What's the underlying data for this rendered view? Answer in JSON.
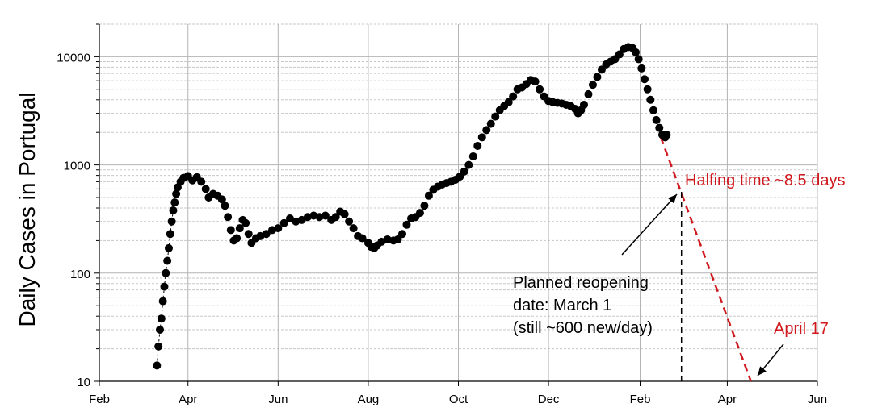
{
  "chart_data": {
    "type": "scatter",
    "title": "",
    "ylabel": "Daily Cases in Portugal",
    "xlabel": "",
    "yscale": "log",
    "ylim": [
      10,
      20000
    ],
    "xlim": [
      "2020-02-01",
      "2021-06-01"
    ],
    "x_ticks": [
      {
        "label": "Feb",
        "date": "2020-02-01"
      },
      {
        "label": "Apr",
        "date": "2020-04-01"
      },
      {
        "label": "Jun",
        "date": "2020-06-01"
      },
      {
        "label": "Aug",
        "date": "2020-08-01"
      },
      {
        "label": "Oct",
        "date": "2020-10-01"
      },
      {
        "label": "Dec",
        "date": "2020-12-01"
      },
      {
        "label": "Feb",
        "date": "2021-02-01"
      },
      {
        "label": "Apr",
        "date": "2021-04-01"
      },
      {
        "label": "Jun",
        "date": "2021-06-01"
      }
    ],
    "y_ticks": [
      {
        "label": "10",
        "value": 10
      },
      {
        "label": "100",
        "value": 100
      },
      {
        "label": "1000",
        "value": 1000
      },
      {
        "label": "10000",
        "value": 10000
      }
    ],
    "grid": true,
    "series": [
      {
        "type": "scatter",
        "color": "#000000",
        "points": [
          [
            "2020-03-11",
            14
          ],
          [
            "2020-03-12",
            21
          ],
          [
            "2020-03-13",
            30
          ],
          [
            "2020-03-14",
            38
          ],
          [
            "2020-03-15",
            55
          ],
          [
            "2020-03-16",
            75
          ],
          [
            "2020-03-17",
            100
          ],
          [
            "2020-03-18",
            130
          ],
          [
            "2020-03-19",
            170
          ],
          [
            "2020-03-20",
            230
          ],
          [
            "2020-03-21",
            300
          ],
          [
            "2020-03-22",
            380
          ],
          [
            "2020-03-23",
            450
          ],
          [
            "2020-03-24",
            540
          ],
          [
            "2020-03-25",
            620
          ],
          [
            "2020-03-27",
            700
          ],
          [
            "2020-03-29",
            760
          ],
          [
            "2020-04-01",
            790
          ],
          [
            "2020-04-04",
            720
          ],
          [
            "2020-04-07",
            770
          ],
          [
            "2020-04-10",
            700
          ],
          [
            "2020-04-13",
            600
          ],
          [
            "2020-04-15",
            500
          ],
          [
            "2020-04-18",
            540
          ],
          [
            "2020-04-21",
            520
          ],
          [
            "2020-04-24",
            480
          ],
          [
            "2020-04-26",
            420
          ],
          [
            "2020-04-28",
            330
          ],
          [
            "2020-04-30",
            250
          ],
          [
            "2020-05-02",
            200
          ],
          [
            "2020-05-04",
            210
          ],
          [
            "2020-05-06",
            260
          ],
          [
            "2020-05-08",
            310
          ],
          [
            "2020-05-10",
            290
          ],
          [
            "2020-05-12",
            230
          ],
          [
            "2020-05-14",
            190
          ],
          [
            "2020-05-17",
            210
          ],
          [
            "2020-05-20",
            220
          ],
          [
            "2020-05-24",
            230
          ],
          [
            "2020-05-28",
            250
          ],
          [
            "2020-06-01",
            260
          ],
          [
            "2020-06-05",
            290
          ],
          [
            "2020-06-09",
            320
          ],
          [
            "2020-06-13",
            300
          ],
          [
            "2020-06-17",
            310
          ],
          [
            "2020-06-21",
            330
          ],
          [
            "2020-06-25",
            340
          ],
          [
            "2020-06-29",
            330
          ],
          [
            "2020-07-03",
            340
          ],
          [
            "2020-07-07",
            310
          ],
          [
            "2020-07-10",
            330
          ],
          [
            "2020-07-13",
            370
          ],
          [
            "2020-07-16",
            350
          ],
          [
            "2020-07-19",
            300
          ],
          [
            "2020-07-22",
            260
          ],
          [
            "2020-07-25",
            220
          ],
          [
            "2020-07-28",
            210
          ],
          [
            "2020-08-01",
            190
          ],
          [
            "2020-08-03",
            175
          ],
          [
            "2020-08-05",
            170
          ],
          [
            "2020-08-07",
            180
          ],
          [
            "2020-08-10",
            195
          ],
          [
            "2020-08-14",
            205
          ],
          [
            "2020-08-18",
            200
          ],
          [
            "2020-08-21",
            205
          ],
          [
            "2020-08-24",
            230
          ],
          [
            "2020-08-27",
            280
          ],
          [
            "2020-08-30",
            320
          ],
          [
            "2020-09-02",
            330
          ],
          [
            "2020-09-05",
            360
          ],
          [
            "2020-09-08",
            420
          ],
          [
            "2020-09-11",
            520
          ],
          [
            "2020-09-14",
            590
          ],
          [
            "2020-09-17",
            630
          ],
          [
            "2020-09-20",
            660
          ],
          [
            "2020-09-23",
            680
          ],
          [
            "2020-09-26",
            700
          ],
          [
            "2020-09-29",
            730
          ],
          [
            "2020-10-02",
            780
          ],
          [
            "2020-10-05",
            870
          ],
          [
            "2020-10-08",
            1000
          ],
          [
            "2020-10-11",
            1200
          ],
          [
            "2020-10-14",
            1500
          ],
          [
            "2020-10-17",
            1800
          ],
          [
            "2020-10-20",
            2100
          ],
          [
            "2020-10-23",
            2400
          ],
          [
            "2020-10-26",
            2800
          ],
          [
            "2020-10-29",
            3200
          ],
          [
            "2020-11-01",
            3500
          ],
          [
            "2020-11-04",
            3800
          ],
          [
            "2020-11-07",
            4300
          ],
          [
            "2020-11-10",
            5000
          ],
          [
            "2020-11-13",
            5200
          ],
          [
            "2020-11-16",
            5600
          ],
          [
            "2020-11-19",
            6100
          ],
          [
            "2020-11-22",
            5900
          ],
          [
            "2020-11-25",
            5000
          ],
          [
            "2020-11-28",
            4300
          ],
          [
            "2020-12-01",
            3900
          ],
          [
            "2020-12-04",
            3800
          ],
          [
            "2020-12-07",
            3750
          ],
          [
            "2020-12-10",
            3700
          ],
          [
            "2020-12-13",
            3600
          ],
          [
            "2020-12-16",
            3500
          ],
          [
            "2020-12-19",
            3300
          ],
          [
            "2020-12-21",
            3000
          ],
          [
            "2020-12-23",
            3200
          ],
          [
            "2020-12-25",
            3600
          ],
          [
            "2020-12-28",
            4500
          ],
          [
            "2020-12-31",
            5500
          ],
          [
            "2021-01-03",
            6500
          ],
          [
            "2021-01-06",
            7600
          ],
          [
            "2021-01-09",
            8500
          ],
          [
            "2021-01-12",
            9000
          ],
          [
            "2021-01-15",
            9500
          ],
          [
            "2021-01-18",
            10500
          ],
          [
            "2021-01-21",
            11800
          ],
          [
            "2021-01-24",
            12300
          ],
          [
            "2021-01-27",
            12000
          ],
          [
            "2021-01-29",
            11000
          ],
          [
            "2021-01-31",
            9500
          ],
          [
            "2021-02-02",
            7800
          ],
          [
            "2021-02-04",
            6200
          ],
          [
            "2021-02-06",
            5000
          ],
          [
            "2021-02-08",
            4000
          ],
          [
            "2021-02-10",
            3200
          ],
          [
            "2021-02-12",
            2600
          ],
          [
            "2021-02-14",
            2200
          ],
          [
            "2021-02-16",
            1900
          ],
          [
            "2021-02-18",
            1800
          ],
          [
            "2021-02-19",
            1900
          ]
        ]
      },
      {
        "type": "line",
        "style": "dashed",
        "color": "#d0191e",
        "points": [
          [
            "2021-02-15",
            1800
          ],
          [
            "2021-04-17",
            10
          ]
        ]
      }
    ],
    "annotations": [
      {
        "text": "Halfing time ~8.5 days",
        "color": "#d0191e"
      },
      {
        "text": "April 17",
        "color": "#d0191e"
      },
      {
        "lines": [
          "Planned reopening",
          "date: March 1",
          "(still ~600 new/day)"
        ],
        "color": "#000000"
      }
    ],
    "vline": {
      "date": "2021-03-01",
      "style": "dashed",
      "color": "#000000"
    }
  }
}
